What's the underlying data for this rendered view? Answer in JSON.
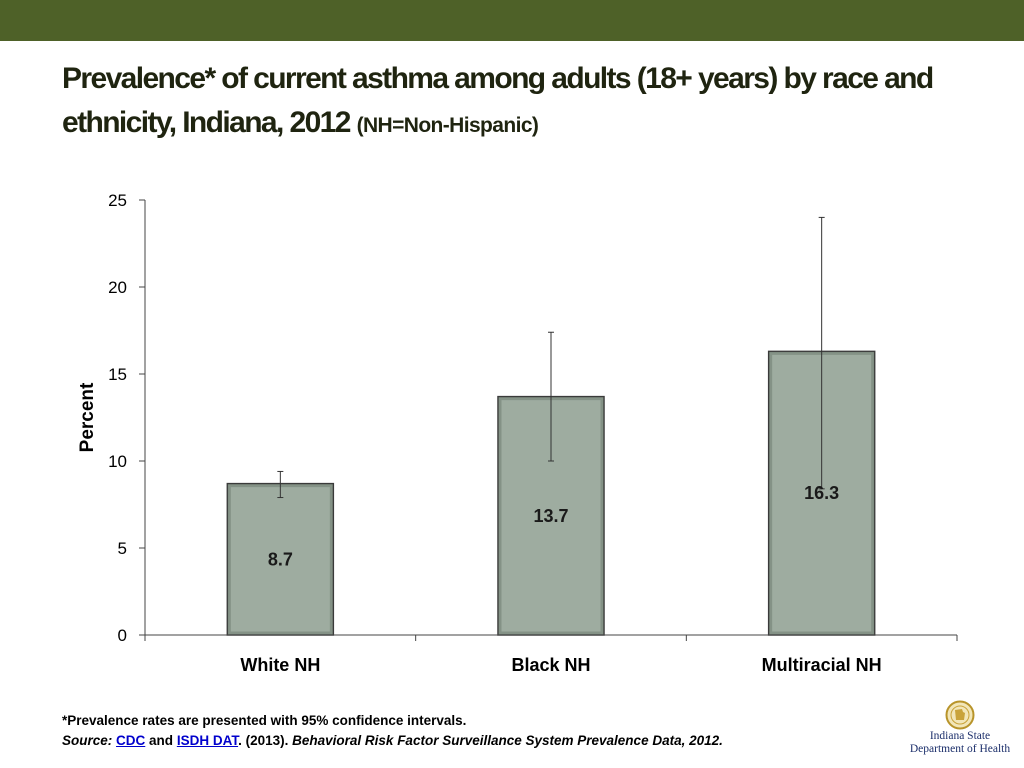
{
  "slide": {
    "title_main": "Prevalence* of current asthma among adults (18+ years) by race and ethnicity, Indiana, 2012",
    "title_sub": "(NH=Non-Hispanic)",
    "colors": {
      "band": "#4e6128",
      "bar_fill": "#9eaca0",
      "bar_edge": "#3a3a3a"
    }
  },
  "footnote": {
    "line1": "*Prevalence rates are presented with 95% confidence intervals.",
    "source_label": "Source:",
    "link1": "CDC",
    "and_text": "and",
    "link2": "ISDH DAT",
    "year_text": ". (2013).",
    "citation": "Behavioral Risk Factor Surveillance System Prevalence Data, 2012."
  },
  "logo": {
    "line1": "Indiana State",
    "line2": "Department of Health",
    "icon": "indiana-seal-icon"
  },
  "chart_data": {
    "type": "bar",
    "categories": [
      "White NH",
      "Black NH",
      "Multiracial NH"
    ],
    "values": [
      8.7,
      13.7,
      16.3
    ],
    "value_labels": [
      "8.7",
      "13.7",
      "16.3"
    ],
    "ci_low": [
      7.9,
      10.0,
      8.4
    ],
    "ci_high": [
      9.4,
      17.4,
      24.0
    ],
    "ylabel": "Percent",
    "ylim": [
      0,
      25
    ],
    "yticks": [
      0,
      5,
      10,
      15,
      20,
      25
    ],
    "grid": false,
    "legend": "none"
  }
}
